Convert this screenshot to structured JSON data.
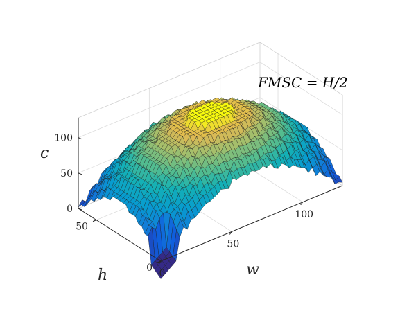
{
  "chart_data": {
    "type": "surface",
    "title": "",
    "annotation": "FMSC = H/2",
    "xlabel": "w",
    "ylabel": "h",
    "zlabel": "c",
    "xlim": [
      0,
      128
    ],
    "ylim": [
      0,
      64
    ],
    "zlim": [
      0,
      128
    ],
    "xticks": [
      0,
      50,
      100
    ],
    "yticks": [
      0,
      50
    ],
    "zticks": [
      0,
      50,
      100
    ],
    "xtick_labels": [
      "0",
      "50",
      "100"
    ],
    "ytick_labels": [
      "0",
      "50"
    ],
    "ztick_labels": [
      "0",
      "50",
      "100"
    ],
    "grid": true,
    "colormap": "parula",
    "surface": {
      "grid_w": [
        0,
        128
      ],
      "grid_h": [
        0,
        64
      ],
      "peak": {
        "w": 64,
        "h": 32,
        "c": 120
      },
      "edge_c": 2,
      "step_c": 8,
      "corner_pits_c": -25
    }
  }
}
